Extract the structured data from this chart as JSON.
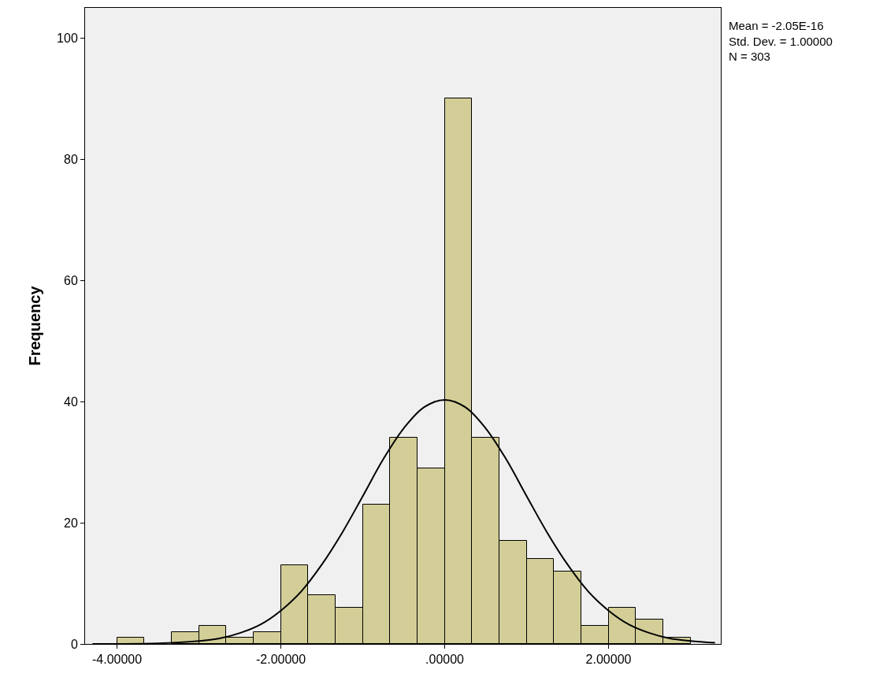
{
  "chart_data": {
    "type": "histogram",
    "ylabel": "Frequency",
    "bins": [
      -4,
      -3.667,
      -3.333,
      -3,
      -2.667,
      -2.333,
      -2,
      -1.667,
      -1.333,
      -1,
      -0.667,
      -0.333,
      0,
      0.333,
      0.667,
      1,
      1.333,
      1.667,
      2,
      2.333,
      2.667,
      3
    ],
    "values": [
      1,
      0,
      2,
      3,
      1,
      2,
      13,
      8,
      6,
      23,
      34,
      29,
      90,
      34,
      17,
      14,
      12,
      3,
      6,
      4,
      1
    ],
    "color": "#d3ce97",
    "series": [
      {
        "type": "line",
        "color": "#000000",
        "x": [
          -4.3,
          -4,
          -3.5,
          -3,
          -2.75,
          -2.5,
          -2.25,
          -2,
          -1.75,
          -1.5,
          -1.25,
          -1,
          -0.75,
          -0.5,
          -0.25,
          0,
          0.25,
          0.5,
          0.75,
          1,
          1.25,
          1.5,
          1.75,
          2,
          2.25,
          2.5,
          2.75,
          3,
          3.3
        ],
        "values": [
          0,
          0,
          0.1,
          0.5,
          0.9,
          1.8,
          3.2,
          5.5,
          8.7,
          13.1,
          18.4,
          24.4,
          30.5,
          35.6,
          39.1,
          40.3,
          39.1,
          35.6,
          30.5,
          24.4,
          18.4,
          13.1,
          8.7,
          5.5,
          3.2,
          1.8,
          0.9,
          0.5,
          0.2
        ]
      }
    ],
    "xlim": [
      -4.39,
      3.37
    ],
    "ylim": [
      0,
      105
    ],
    "xticks": [
      {
        "value": -4,
        "label": "-4.00000"
      },
      {
        "value": -2,
        "label": "-2.00000"
      },
      {
        "value": 0,
        "label": ".00000"
      },
      {
        "value": 2,
        "label": "2.00000"
      }
    ],
    "yticks": [
      0,
      20,
      40,
      60,
      80,
      100
    ],
    "grid": false,
    "annotations": [
      "Mean = -2.05E-16\nStd. Dev. = 1.00000\nN = 303"
    ]
  }
}
